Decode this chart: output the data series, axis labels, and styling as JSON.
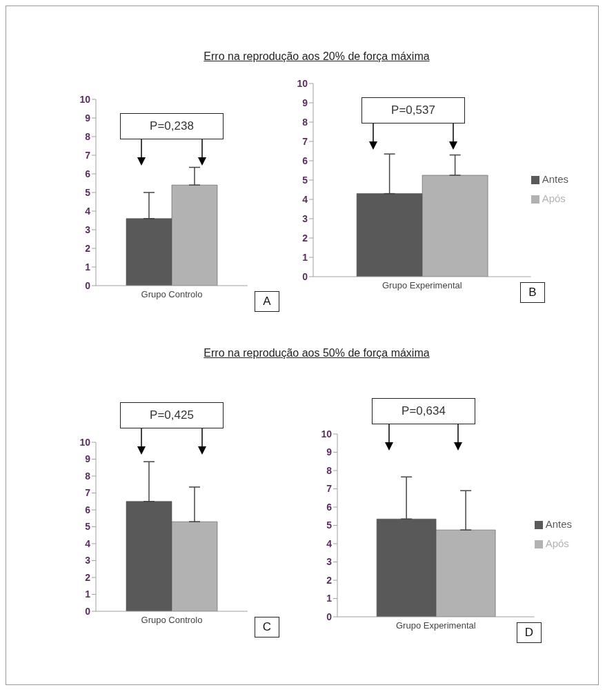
{
  "chart_data": [
    {
      "type": "bar",
      "categories": [
        "Grupo Controlo"
      ],
      "series": [
        {
          "color": "#595959",
          "values": [
            3.6
          ],
          "errors": [
            [
              3.6,
              5.0
            ]
          ]
        },
        {
          "color": "#b2b2b2",
          "values": [
            5.4
          ],
          "errors": [
            [
              5.4,
              6.35
            ]
          ]
        }
      ],
      "ylim": [
        0,
        10
      ],
      "yticks": [
        0,
        1,
        2,
        3,
        4,
        5,
        6,
        7,
        8,
        9,
        10
      ],
      "grid": false,
      "legend": false,
      "annotations": [
        "P=0,238",
        "A"
      ]
    },
    {
      "type": "bar",
      "title": "Erro na reprodução aos 20% de força máxima",
      "categories": [
        "Grupo Experimental"
      ],
      "series": [
        {
          "name": "Antes",
          "color": "#595959",
          "values": [
            4.3
          ],
          "errors": [
            [
              4.3,
              6.35
            ]
          ]
        },
        {
          "name": "Após",
          "color": "#b2b2b2",
          "values": [
            5.25
          ],
          "errors": [
            [
              5.25,
              6.3
            ]
          ]
        }
      ],
      "ylim": [
        0,
        10
      ],
      "yticks": [
        0,
        1,
        2,
        3,
        4,
        5,
        6,
        7,
        8,
        9,
        10
      ],
      "grid": false,
      "legend": "right",
      "annotations": [
        "P=0,537",
        "B"
      ]
    },
    {
      "type": "bar",
      "categories": [
        "Grupo Controlo"
      ],
      "series": [
        {
          "color": "#595959",
          "values": [
            6.5
          ],
          "errors": [
            [
              6.5,
              8.85
            ]
          ]
        },
        {
          "color": "#b2b2b2",
          "values": [
            5.3
          ],
          "errors": [
            [
              5.3,
              7.35
            ]
          ]
        }
      ],
      "ylim": [
        0,
        10
      ],
      "yticks": [
        0,
        1,
        2,
        3,
        4,
        5,
        6,
        7,
        8,
        9,
        10
      ],
      "grid": false,
      "legend": false,
      "annotations": [
        "P=0,425",
        "C"
      ]
    },
    {
      "type": "bar",
      "title": "Erro na reprodução aos 50% de força máxima",
      "categories": [
        "Grupo Experimental"
      ],
      "series": [
        {
          "name": "Antes",
          "color": "#595959",
          "values": [
            5.35
          ],
          "errors": [
            [
              5.35,
              7.65
            ]
          ]
        },
        {
          "name": "Após",
          "color": "#b2b2b2",
          "values": [
            4.75
          ],
          "errors": [
            [
              4.75,
              6.9
            ]
          ]
        }
      ],
      "ylim": [
        0,
        10
      ],
      "yticks": [
        0,
        1,
        2,
        3,
        4,
        5,
        6,
        7,
        8,
        9,
        10
      ],
      "grid": false,
      "legend": "right",
      "annotations": [
        "P=0,634",
        "D"
      ]
    }
  ]
}
